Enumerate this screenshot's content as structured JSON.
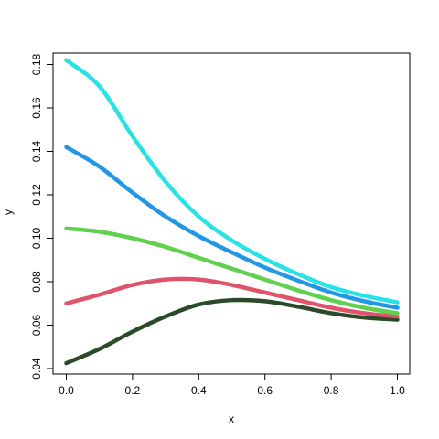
{
  "chart_data": {
    "type": "line",
    "title": "",
    "xlabel": "x",
    "ylabel": "y",
    "xlim": [
      0,
      1
    ],
    "ylim": [
      0.04,
      0.185
    ],
    "x_ticks": [
      "0.0",
      "0.2",
      "0.4",
      "0.6",
      "0.8",
      "1.0"
    ],
    "y_ticks": [
      "0.04",
      "0.06",
      "0.08",
      "0.10",
      "0.12",
      "0.14",
      "0.16",
      "0.18"
    ],
    "grid": false,
    "legend": "none",
    "series": [
      {
        "color": "#2a4a2a",
        "x": [
          0,
          0.1,
          0.2,
          0.3,
          0.4,
          0.5,
          0.6,
          0.7,
          0.8,
          0.9,
          1.0
        ],
        "y": [
          0.0425,
          0.049,
          0.057,
          0.064,
          0.0695,
          0.0715,
          0.071,
          0.0685,
          0.0655,
          0.0635,
          0.0625
        ]
      },
      {
        "color": "#df536b",
        "x": [
          0,
          0.1,
          0.2,
          0.3,
          0.4,
          0.5,
          0.6,
          0.7,
          0.8,
          0.9,
          1.0
        ],
        "y": [
          0.07,
          0.074,
          0.0785,
          0.081,
          0.081,
          0.0785,
          0.075,
          0.0715,
          0.068,
          0.0655,
          0.064
        ]
      },
      {
        "color": "#61d04f",
        "x": [
          0,
          0.1,
          0.2,
          0.3,
          0.4,
          0.5,
          0.6,
          0.7,
          0.8,
          0.9,
          1.0
        ],
        "y": [
          0.1045,
          0.103,
          0.1,
          0.096,
          0.091,
          0.086,
          0.081,
          0.076,
          0.0715,
          0.068,
          0.0655
        ]
      },
      {
        "color": "#2297e6",
        "x": [
          0,
          0.1,
          0.2,
          0.3,
          0.4,
          0.5,
          0.6,
          0.7,
          0.8,
          0.9,
          1.0
        ],
        "y": [
          0.142,
          0.133,
          0.121,
          0.11,
          0.101,
          0.0935,
          0.0865,
          0.0805,
          0.075,
          0.071,
          0.068
        ]
      },
      {
        "color": "#28e2e5",
        "x": [
          0,
          0.1,
          0.2,
          0.3,
          0.4,
          0.5,
          0.6,
          0.7,
          0.8,
          0.9,
          1.0
        ],
        "y": [
          0.182,
          0.17,
          0.147,
          0.126,
          0.11,
          0.099,
          0.0905,
          0.0835,
          0.0775,
          0.0735,
          0.0705
        ]
      }
    ]
  }
}
